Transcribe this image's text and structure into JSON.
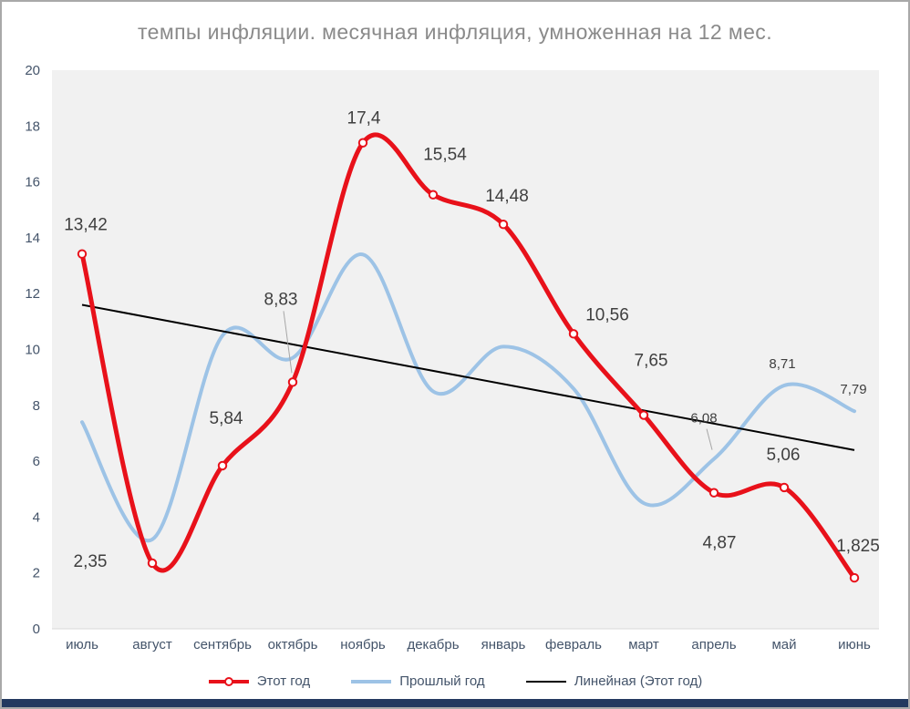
{
  "window": {
    "bottom_bar_color": "#24395f"
  },
  "chart_data": {
    "type": "line",
    "title": "темпы инфляции. месячная инфляция, умноженная на 12 мес.",
    "categories": [
      "июль",
      "август",
      "сентябрь",
      "октябрь",
      "ноябрь",
      "декабрь",
      "январь",
      "февраль",
      "март",
      "апрель",
      "май",
      "июнь"
    ],
    "y_axis": {
      "min": 0,
      "max": 20,
      "step": 2,
      "ticks": [
        0,
        2,
        4,
        6,
        8,
        10,
        12,
        14,
        16,
        18,
        20
      ]
    },
    "grid": false,
    "legend_position": "bottom",
    "colors": {
      "plot_bg": "#f1f1f1",
      "axis_text": "#44546a",
      "label_text": "#3f3f3f",
      "leader": "#a6a6a6",
      "title": "#8a8a8a",
      "baseline": "#d9d9d9"
    },
    "series": [
      {
        "name": "Этот год",
        "type": "line",
        "smooth": true,
        "color": "#e8111a",
        "width": 5,
        "marker": "circle",
        "label_size": 19,
        "values": [
          13.42,
          2.35,
          5.84,
          8.83,
          17.4,
          15.54,
          14.48,
          10.56,
          7.65,
          4.87,
          5.06,
          1.825
        ],
        "labels": [
          {
            "text": "13,42",
            "dx": 4,
            "dy": -32
          },
          {
            "text": "2,35",
            "dx": -68,
            "dy": -2
          },
          {
            "text": "5,84",
            "dx": 4,
            "dy": -52
          },
          {
            "text": "8,83",
            "dx": -13,
            "dy": -91,
            "leader": {
              "from": [
                -10,
                -78
              ],
              "to": [
                -1,
                -10
              ]
            }
          },
          {
            "text": "17,4",
            "dx": 1,
            "dy": -27
          },
          {
            "text": "15,54",
            "dx": 13,
            "dy": -44
          },
          {
            "text": "14,48",
            "dx": 4,
            "dy": -31
          },
          {
            "text": "10,56",
            "dx": 37,
            "dy": -21
          },
          {
            "text": "7,65",
            "dx": 8,
            "dy": -60
          },
          {
            "text": "4,87",
            "dx": 6,
            "dy": 55
          },
          {
            "text": "5,06",
            "dx": -1,
            "dy": -36
          },
          {
            "text": "1,825",
            "dx": 4,
            "dy": -35
          }
        ]
      },
      {
        "name": "Прошлый год",
        "type": "line",
        "smooth": true,
        "color": "#9dc3e6",
        "width": 4,
        "marker": "none",
        "label_size": 15,
        "values": [
          7.4,
          3.2,
          10.5,
          9.7,
          13.4,
          8.5,
          10.1,
          8.6,
          4.5,
          6.08,
          8.71,
          7.79
        ],
        "labels": [
          null,
          null,
          null,
          null,
          null,
          null,
          null,
          null,
          null,
          {
            "text": "6,08",
            "dx": -11,
            "dy": -46,
            "leader": {
              "from": [
                -8,
                -33
              ],
              "to": [
                -2,
                -10
              ]
            }
          },
          {
            "text": "8,71",
            "dx": -2,
            "dy": -25
          },
          {
            "text": "7,79",
            "dx": -1,
            "dy": -25
          }
        ]
      },
      {
        "name": "Линейная (Этот год)",
        "type": "trendline",
        "color": "#000000",
        "width": 2,
        "start": 11.6,
        "end": 6.4
      }
    ]
  }
}
